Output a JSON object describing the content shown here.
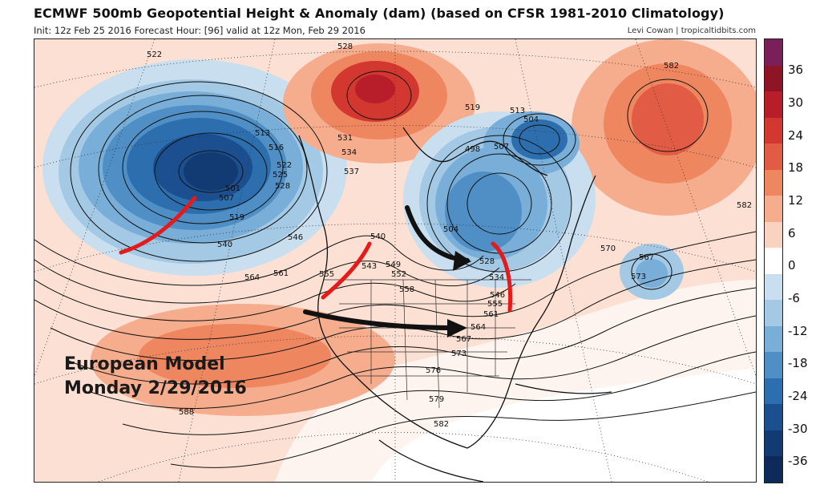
{
  "header": {
    "title": "ECMWF 500mb Geopotential Height & Anomaly (dam) (based on CFSR 1981-2010 Climatology)",
    "subtitle": "Init: 12z Feb 25 2016   Forecast Hour: [96]   valid at 12z Mon, Feb 29 2016",
    "credit": "Levi Cowan | tropicaltidbits.com"
  },
  "caption": {
    "line1": "European Model",
    "line2": "Monday 2/29/2016"
  },
  "colorbar": {
    "ticks": [
      "36",
      "30",
      "24",
      "18",
      "12",
      "6",
      "0",
      "-6",
      "-12",
      "-18",
      "-24",
      "-30",
      "-36"
    ],
    "colors": [
      "#7a1f5a",
      "#8e1525",
      "#b81d2a",
      "#d2382f",
      "#e25c45",
      "#ee8660",
      "#f5ad8e",
      "#fad3c0",
      "#ffffff",
      "#c9dff0",
      "#a4c9e4",
      "#78aed8",
      "#4f8fc6",
      "#2d6fae",
      "#1c4f8f",
      "#123a73",
      "#0d2a5a"
    ]
  },
  "contour_labels": [
    "522",
    "528",
    "582",
    "519",
    "513",
    "504",
    "498",
    "507",
    "513",
    "516",
    "522",
    "525",
    "528",
    "531",
    "534",
    "537",
    "519",
    "540",
    "546",
    "540",
    "543",
    "549",
    "552",
    "555",
    "558",
    "561",
    "564",
    "504",
    "528",
    "534",
    "546",
    "555",
    "561",
    "564",
    "567",
    "570",
    "567",
    "573",
    "573",
    "576",
    "579",
    "582",
    "582",
    "588",
    "501",
    "507"
  ]
}
